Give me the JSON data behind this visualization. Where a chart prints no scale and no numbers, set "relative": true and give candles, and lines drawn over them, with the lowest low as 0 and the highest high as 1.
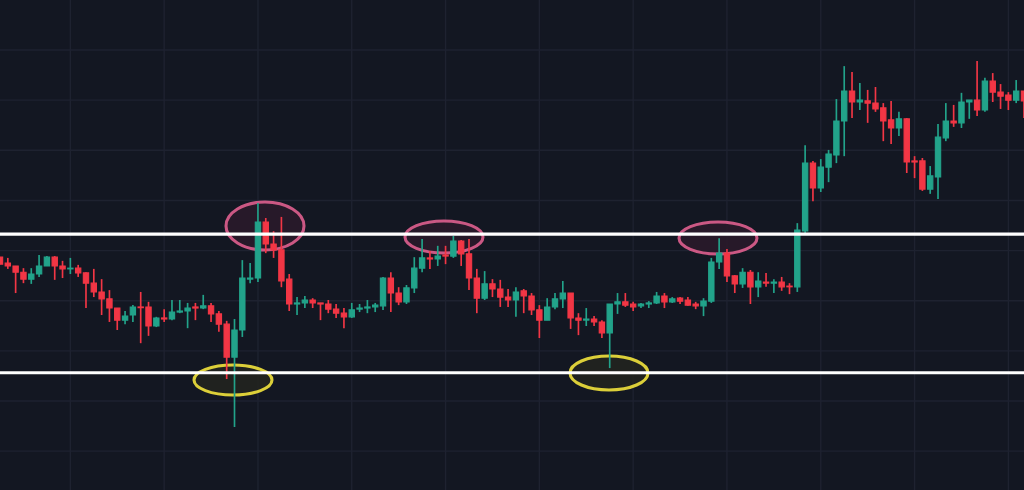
{
  "chart_data": {
    "type": "candlestick",
    "relative": true,
    "grid": true,
    "categories": [
      null,
      null,
      null,
      null,
      null,
      null,
      null,
      null,
      null,
      null,
      null,
      null,
      null,
      null,
      null,
      null,
      null,
      null,
      null,
      null,
      null,
      null,
      null,
      null,
      null,
      null,
      null,
      null,
      null,
      null,
      null,
      null,
      null,
      null,
      null,
      null,
      null,
      null,
      null,
      null,
      null,
      null,
      null,
      null,
      null,
      null,
      null,
      null,
      null,
      null,
      null,
      null,
      null,
      null,
      null,
      null,
      null,
      null,
      null,
      null,
      null,
      null,
      null,
      null,
      null,
      null,
      null,
      null,
      null,
      null,
      null,
      null,
      null,
      null,
      null,
      null,
      null,
      null,
      null,
      null,
      null,
      null,
      null,
      null,
      null,
      null,
      null,
      null,
      null,
      null,
      null,
      null,
      null,
      null,
      null,
      null,
      null,
      null,
      null,
      null,
      null,
      null,
      null,
      null,
      null,
      null,
      null,
      null,
      null,
      null,
      null,
      null,
      null,
      null,
      null,
      null,
      null,
      null,
      null,
      null,
      null,
      null,
      null,
      null,
      null,
      null,
      null,
      null,
      null,
      null,
      null,
      null
    ],
    "ohlc": [
      [
        0.464,
        0.464,
        0.445,
        0.445
      ],
      [
        0.448,
        0.462,
        0.432,
        0.44
      ],
      [
        0.44,
        0.44,
        0.366,
        0.423
      ],
      [
        0.423,
        0.434,
        0.393,
        0.404
      ],
      [
        0.404,
        0.434,
        0.391,
        0.418
      ],
      [
        0.418,
        0.47,
        0.41,
        0.44
      ],
      [
        0.44,
        0.467,
        0.44,
        0.464
      ],
      [
        0.464,
        0.467,
        0.402,
        0.44
      ],
      [
        0.44,
        0.454,
        0.407,
        0.432
      ],
      [
        0.432,
        0.462,
        0.418,
        0.434
      ],
      [
        0.434,
        0.443,
        0.41,
        0.421
      ],
      [
        0.421,
        0.423,
        0.325,
        0.393
      ],
      [
        0.393,
        0.432,
        0.355,
        0.369
      ],
      [
        0.369,
        0.404,
        0.306,
        0.35
      ],
      [
        0.35,
        0.374,
        0.287,
        0.325
      ],
      [
        0.325,
        0.325,
        0.265,
        0.292
      ],
      [
        0.292,
        0.317,
        0.281,
        0.303
      ],
      [
        0.306,
        0.333,
        0.287,
        0.328
      ],
      [
        0.328,
        0.369,
        0.229,
        0.326
      ],
      [
        0.328,
        0.342,
        0.249,
        0.276
      ],
      [
        0.276,
        0.301,
        0.273,
        0.298
      ],
      [
        0.298,
        0.322,
        0.287,
        0.295
      ],
      [
        0.295,
        0.347,
        0.292,
        0.314
      ],
      [
        0.314,
        0.347,
        0.311,
        0.317
      ],
      [
        0.317,
        0.339,
        0.27,
        0.325
      ],
      [
        0.328,
        0.339,
        0.292,
        0.325
      ],
      [
        0.325,
        0.361,
        0.322,
        0.331
      ],
      [
        0.331,
        0.339,
        0.287,
        0.309
      ],
      [
        0.309,
        0.317,
        0.26,
        0.281
      ],
      [
        0.281,
        0.29,
        0.131,
        0.191
      ],
      [
        0.191,
        0.295,
        0,
        0.265
      ],
      [
        0.265,
        0.456,
        0.246,
        0.407
      ],
      [
        0.404,
        0.448,
        0.393,
        0.407
      ],
      [
        0.407,
        0.612,
        0.396,
        0.56
      ],
      [
        0.56,
        0.571,
        0.475,
        0.5
      ],
      [
        0.5,
        0.535,
        0.462,
        0.484
      ],
      [
        0.484,
        0.574,
        0.382,
        0.399
      ],
      [
        0.404,
        0.418,
        0.317,
        0.336
      ],
      [
        0.336,
        0.355,
        0.306,
        0.339
      ],
      [
        0.339,
        0.358,
        0.325,
        0.347
      ],
      [
        0.347,
        0.352,
        0.325,
        0.339
      ],
      [
        0.339,
        0.339,
        0.292,
        0.336
      ],
      [
        0.336,
        0.347,
        0.311,
        0.322
      ],
      [
        0.322,
        0.336,
        0.298,
        0.311
      ],
      [
        0.311,
        0.325,
        0.27,
        0.301
      ],
      [
        0.301,
        0.339,
        0.298,
        0.32
      ],
      [
        0.322,
        0.336,
        0.314,
        0.325
      ],
      [
        0.325,
        0.347,
        0.311,
        0.328
      ],
      [
        0.328,
        0.339,
        0.314,
        0.333
      ],
      [
        0.331,
        0.41,
        0.32,
        0.407
      ],
      [
        0.407,
        0.423,
        0.314,
        0.366
      ],
      [
        0.366,
        0.382,
        0.333,
        0.342
      ],
      [
        0.342,
        0.388,
        0.336,
        0.38
      ],
      [
        0.38,
        0.464,
        0.366,
        0.434
      ],
      [
        0.434,
        0.514,
        0.423,
        0.462
      ],
      [
        0.462,
        0.481,
        0.432,
        0.459
      ],
      [
        0.459,
        0.495,
        0.44,
        0.467
      ],
      [
        0.47,
        0.495,
        0.445,
        0.467
      ],
      [
        0.467,
        0.522,
        0.462,
        0.508
      ],
      [
        0.508,
        0.511,
        0.44,
        0.473
      ],
      [
        0.473,
        0.514,
        0.374,
        0.407
      ],
      [
        0.407,
        0.432,
        0.311,
        0.352
      ],
      [
        0.352,
        0.426,
        0.347,
        0.391
      ],
      [
        0.391,
        0.404,
        0.355,
        0.377
      ],
      [
        0.377,
        0.402,
        0.328,
        0.355
      ],
      [
        0.355,
        0.377,
        0.328,
        0.347
      ],
      [
        0.347,
        0.382,
        0.301,
        0.369
      ],
      [
        0.372,
        0.377,
        0.311,
        0.358
      ],
      [
        0.358,
        0.366,
        0.306,
        0.32
      ],
      [
        0.32,
        0.333,
        0.243,
        0.292
      ],
      [
        0.292,
        0.352,
        0.292,
        0.328
      ],
      [
        0.328,
        0.366,
        0.322,
        0.35
      ],
      [
        0.35,
        0.399,
        0.325,
        0.366
      ],
      [
        0.366,
        0.366,
        0.268,
        0.298
      ],
      [
        0.298,
        0.311,
        0.251,
        0.292
      ],
      [
        0.292,
        0.325,
        0.276,
        0.295
      ],
      [
        0.295,
        0.303,
        0.276,
        0.287
      ],
      [
        0.287,
        0.292,
        0.243,
        0.257
      ],
      [
        0.257,
        0.336,
        0.161,
        0.336
      ],
      [
        0.336,
        0.366,
        0.309,
        0.342
      ],
      [
        0.342,
        0.366,
        0.328,
        0.333
      ],
      [
        0.336,
        0.342,
        0.317,
        0.328
      ],
      [
        0.331,
        0.339,
        0.325,
        0.336
      ],
      [
        0.336,
        0.344,
        0.325,
        0.339
      ],
      [
        0.339,
        0.369,
        0.336,
        0.358
      ],
      [
        0.358,
        0.366,
        0.325,
        0.342
      ],
      [
        0.342,
        0.355,
        0.339,
        0.35
      ],
      [
        0.352,
        0.355,
        0.336,
        0.344
      ],
      [
        0.347,
        0.355,
        0.331,
        0.333
      ],
      [
        0.336,
        0.342,
        0.322,
        0.331
      ],
      [
        0.331,
        0.352,
        0.303,
        0.344
      ],
      [
        0.344,
        0.462,
        0.339,
        0.451
      ],
      [
        0.451,
        0.516,
        0.432,
        0.475
      ],
      [
        0.475,
        0.486,
        0.396,
        0.413
      ],
      [
        0.413,
        0.415,
        0.366,
        0.391
      ],
      [
        0.391,
        0.434,
        0.38,
        0.423
      ],
      [
        0.423,
        0.429,
        0.336,
        0.383
      ],
      [
        0.383,
        0.423,
        0.355,
        0.399
      ],
      [
        0.396,
        0.421,
        0.383,
        0.393
      ],
      [
        0.393,
        0.404,
        0.366,
        0.396
      ],
      [
        0.396,
        0.41,
        0.372,
        0.383
      ],
      [
        0.385,
        0.393,
        0.363,
        0.383
      ],
      [
        0.383,
        0.557,
        0.369,
        0.538
      ],
      [
        0.536,
        0.77,
        0.525,
        0.721
      ],
      [
        0.721,
        0.727,
        0.617,
        0.653
      ],
      [
        0.653,
        0.732,
        0.642,
        0.71
      ],
      [
        0.71,
        0.757,
        0.669,
        0.746
      ],
      [
        0.743,
        0.896,
        0.721,
        0.836
      ],
      [
        0.836,
        0.986,
        0.74,
        0.918
      ],
      [
        0.918,
        0.97,
        0.844,
        0.888
      ],
      [
        0.888,
        0.94,
        0.866,
        0.893
      ],
      [
        0.891,
        0.921,
        0.831,
        0.885
      ],
      [
        0.885,
        0.929,
        0.861,
        0.869
      ],
      [
        0.872,
        0.885,
        0.781,
        0.836
      ],
      [
        0.839,
        0.891,
        0.773,
        0.817
      ],
      [
        0.817,
        0.861,
        0.795,
        0.842
      ],
      [
        0.842,
        0.844,
        0.694,
        0.724
      ],
      [
        0.727,
        0.74,
        0.68,
        0.724
      ],
      [
        0.727,
        0.735,
        0.645,
        0.65
      ],
      [
        0.65,
        0.713,
        0.637,
        0.686
      ],
      [
        0.683,
        0.828,
        0.623,
        0.792
      ],
      [
        0.79,
        0.885,
        0.781,
        0.836
      ],
      [
        0.836,
        0.88,
        0.82,
        0.831
      ],
      [
        0.831,
        0.913,
        0.817,
        0.888
      ],
      [
        0.888,
        0.893,
        0.842,
        0.893
      ],
      [
        0.893,
        1.0,
        0.85,
        0.866
      ],
      [
        0.866,
        0.954,
        0.861,
        0.945
      ],
      [
        0.945,
        0.967,
        0.888,
        0.915
      ],
      [
        0.915,
        0.937,
        0.869,
        0.904
      ],
      [
        0.907,
        0.915,
        0.866,
        0.893
      ],
      [
        0.893,
        0.948,
        0.885,
        0.918
      ],
      [
        0.918,
        0.918,
        0.844,
        0.891
      ]
    ],
    "ref_lines": [
      {
        "axis": "y",
        "value": 0.527,
        "color": "#ffffff"
      },
      {
        "axis": "y",
        "value": 0.148,
        "color": "#ffffff"
      }
    ]
  }
}
